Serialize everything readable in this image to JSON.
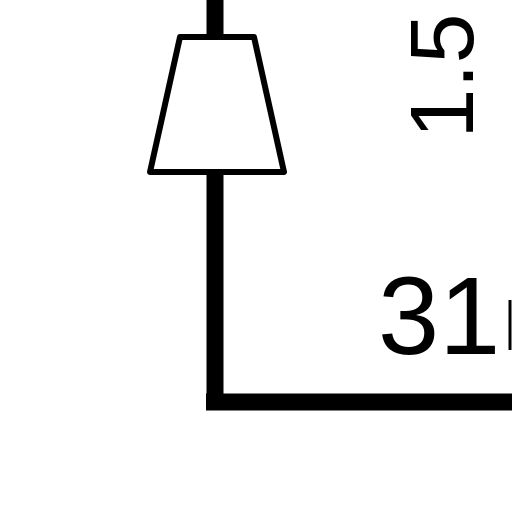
{
  "diagram": {
    "wire_size_label": "1.5",
    "wire_number_label": "31"
  },
  "colors": {
    "ink": "#000000",
    "background": "#ffffff"
  }
}
